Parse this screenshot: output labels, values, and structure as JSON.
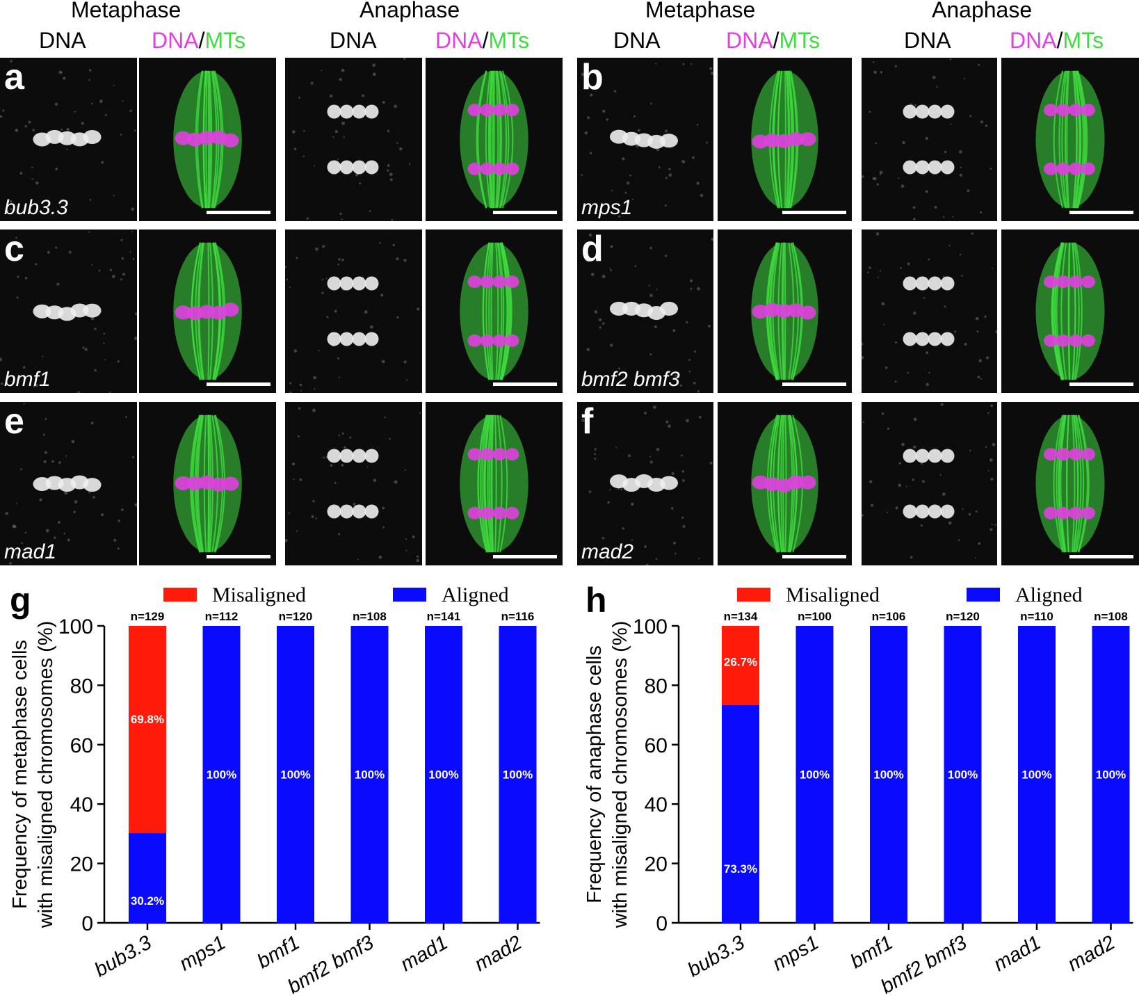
{
  "headers": {
    "left_phases": [
      "Metaphase",
      "Anaphase"
    ],
    "right_phases": [
      "Metaphase",
      "Anaphase"
    ],
    "channel_dna": "DNA",
    "channel_merge_dna": "DNA",
    "channel_merge_sep": "/",
    "channel_merge_mts": "MTs"
  },
  "colors": {
    "dna": "#e040e0",
    "mts": "#3fdc3f",
    "misaligned": "#ff1a0a",
    "aligned": "#0a0aff"
  },
  "image_panels": [
    {
      "letter": "a",
      "gene": "bub3.3"
    },
    {
      "letter": "b",
      "gene": "mps1"
    },
    {
      "letter": "c",
      "gene": "bmf1"
    },
    {
      "letter": "d",
      "gene": "bmf2 bmf3"
    },
    {
      "letter": "e",
      "gene": "mad1"
    },
    {
      "letter": "f",
      "gene": "mad2"
    }
  ],
  "chart_data": [
    {
      "panel": "g",
      "type": "bar",
      "stacked": true,
      "categories": [
        "bub3.3",
        "mps1",
        "bmf1",
        "bmf2 bmf3",
        "mad1",
        "mad2"
      ],
      "series": [
        {
          "name": "Aligned",
          "color": "#0a0aff",
          "values": [
            30.2,
            100,
            100,
            100,
            100,
            100
          ],
          "labels": [
            "30.2%",
            "100%",
            "100%",
            "100%",
            "100%",
            "100%"
          ]
        },
        {
          "name": "Misaligned",
          "color": "#ff1a0a",
          "values": [
            69.8,
            0,
            0,
            0,
            0,
            0
          ],
          "labels": [
            "69.8%",
            "",
            "",
            "",
            "",
            ""
          ]
        }
      ],
      "n_labels": [
        "n=129",
        "n=112",
        "n=120",
        "n=108",
        "n=141",
        "n=116"
      ],
      "ylabel_lines": [
        "Frequency of metaphase cells",
        "with misaligned chromosomes (%)"
      ],
      "ylim": [
        0,
        100
      ],
      "yticks": [
        0,
        20,
        40,
        60,
        80,
        100
      ],
      "legend": [
        "Misaligned",
        "Aligned"
      ],
      "legend_position": "top"
    },
    {
      "panel": "h",
      "type": "bar",
      "stacked": true,
      "categories": [
        "bub3.3",
        "mps1",
        "bmf1",
        "bmf2 bmf3",
        "mad1",
        "mad2"
      ],
      "series": [
        {
          "name": "Aligned",
          "color": "#0a0aff",
          "values": [
            73.3,
            100,
            100,
            100,
            100,
            100
          ],
          "labels": [
            "73.3%",
            "100%",
            "100%",
            "100%",
            "100%",
            "100%"
          ]
        },
        {
          "name": "Misaligned",
          "color": "#ff1a0a",
          "values": [
            26.7,
            0,
            0,
            0,
            0,
            0
          ],
          "labels": [
            "26.7%",
            "",
            "",
            "",
            "",
            ""
          ]
        }
      ],
      "n_labels": [
        "n=134",
        "n=100",
        "n=106",
        "n=120",
        "n=110",
        "n=108"
      ],
      "ylabel_lines": [
        "Frequency of anaphase cells",
        "with misaligned chromosomes (%)"
      ],
      "ylim": [
        0,
        100
      ],
      "yticks": [
        0,
        20,
        40,
        60,
        80,
        100
      ],
      "legend": [
        "Misaligned",
        "Aligned"
      ],
      "legend_position": "top"
    }
  ]
}
